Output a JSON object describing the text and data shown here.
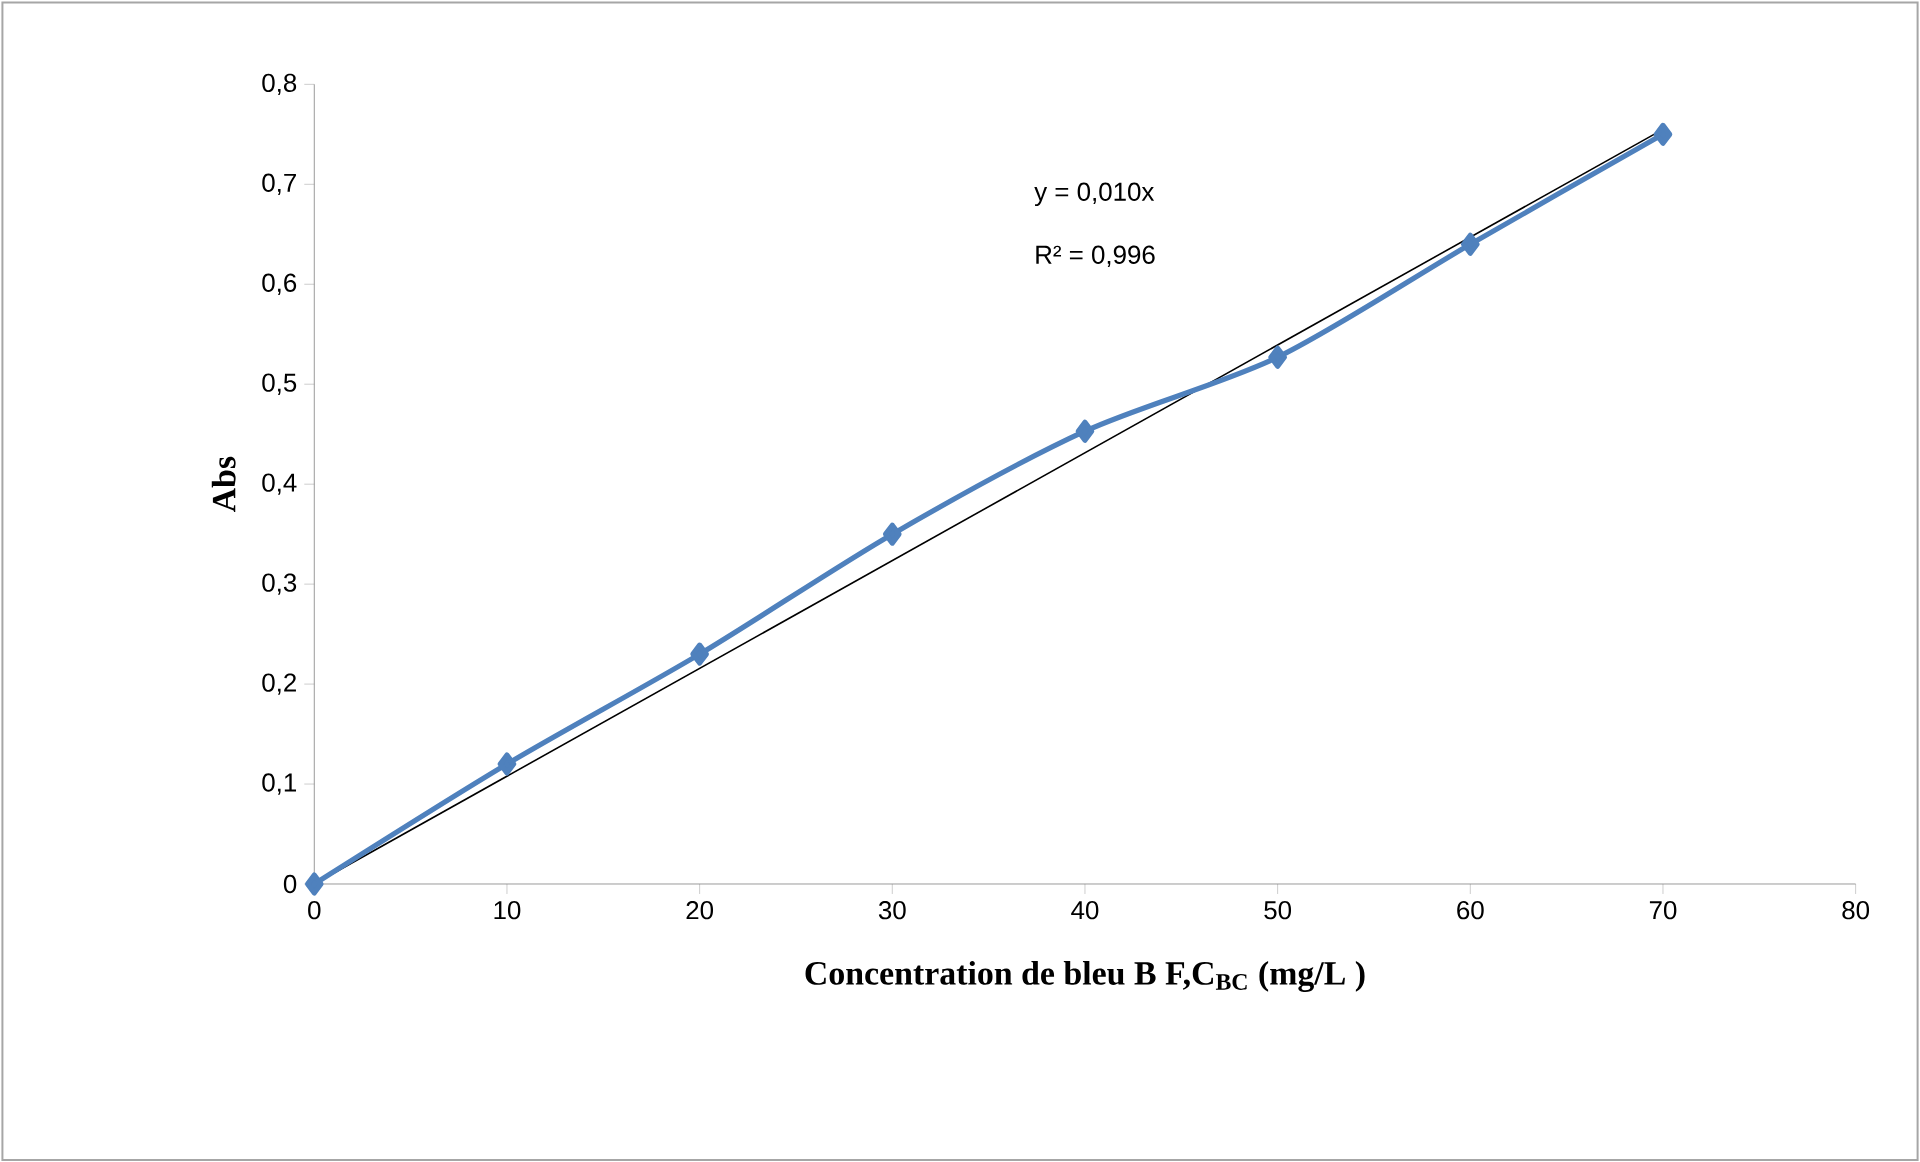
{
  "chart_data": {
    "type": "line",
    "xlabel": "Concentration de bleu B F,C$_{BC}$ (mg/L )",
    "ylabel": "Abs",
    "x": [
      0,
      10,
      20,
      30,
      40,
      50,
      60,
      70
    ],
    "series": [
      {
        "color": "#4f81bd",
        "values": [
          0,
          0.12,
          0.23,
          0.35,
          0.453,
          0.527,
          0.64,
          0.75
        ],
        "marker": "diamond"
      },
      {
        "color": "#000000",
        "x": [
          0,
          70
        ],
        "values": [
          0,
          0.755
        ],
        "marker": "none"
      }
    ],
    "xlim": [
      0,
      80
    ],
    "xticks": [
      0,
      10,
      20,
      30,
      40,
      50,
      60,
      70,
      80
    ],
    "ylim": [
      0,
      0.8
    ],
    "yticks": [
      {
        "value": 0,
        "label": "0"
      },
      {
        "value": 0.1,
        "label": "0,1"
      },
      {
        "value": 0.2,
        "label": "0,2"
      },
      {
        "value": 0.3,
        "label": "0,3"
      },
      {
        "value": 0.4,
        "label": "0,4"
      },
      {
        "value": 0.5,
        "label": "0,5"
      },
      {
        "value": 0.6,
        "label": "0,6"
      },
      {
        "value": 0.7,
        "label": "0,7"
      },
      {
        "value": 0.8,
        "label": "0,8"
      }
    ],
    "annotations": [
      "y = 0,010x",
      "R² = 0,996"
    ],
    "line_style": "solid",
    "grid": false
  }
}
